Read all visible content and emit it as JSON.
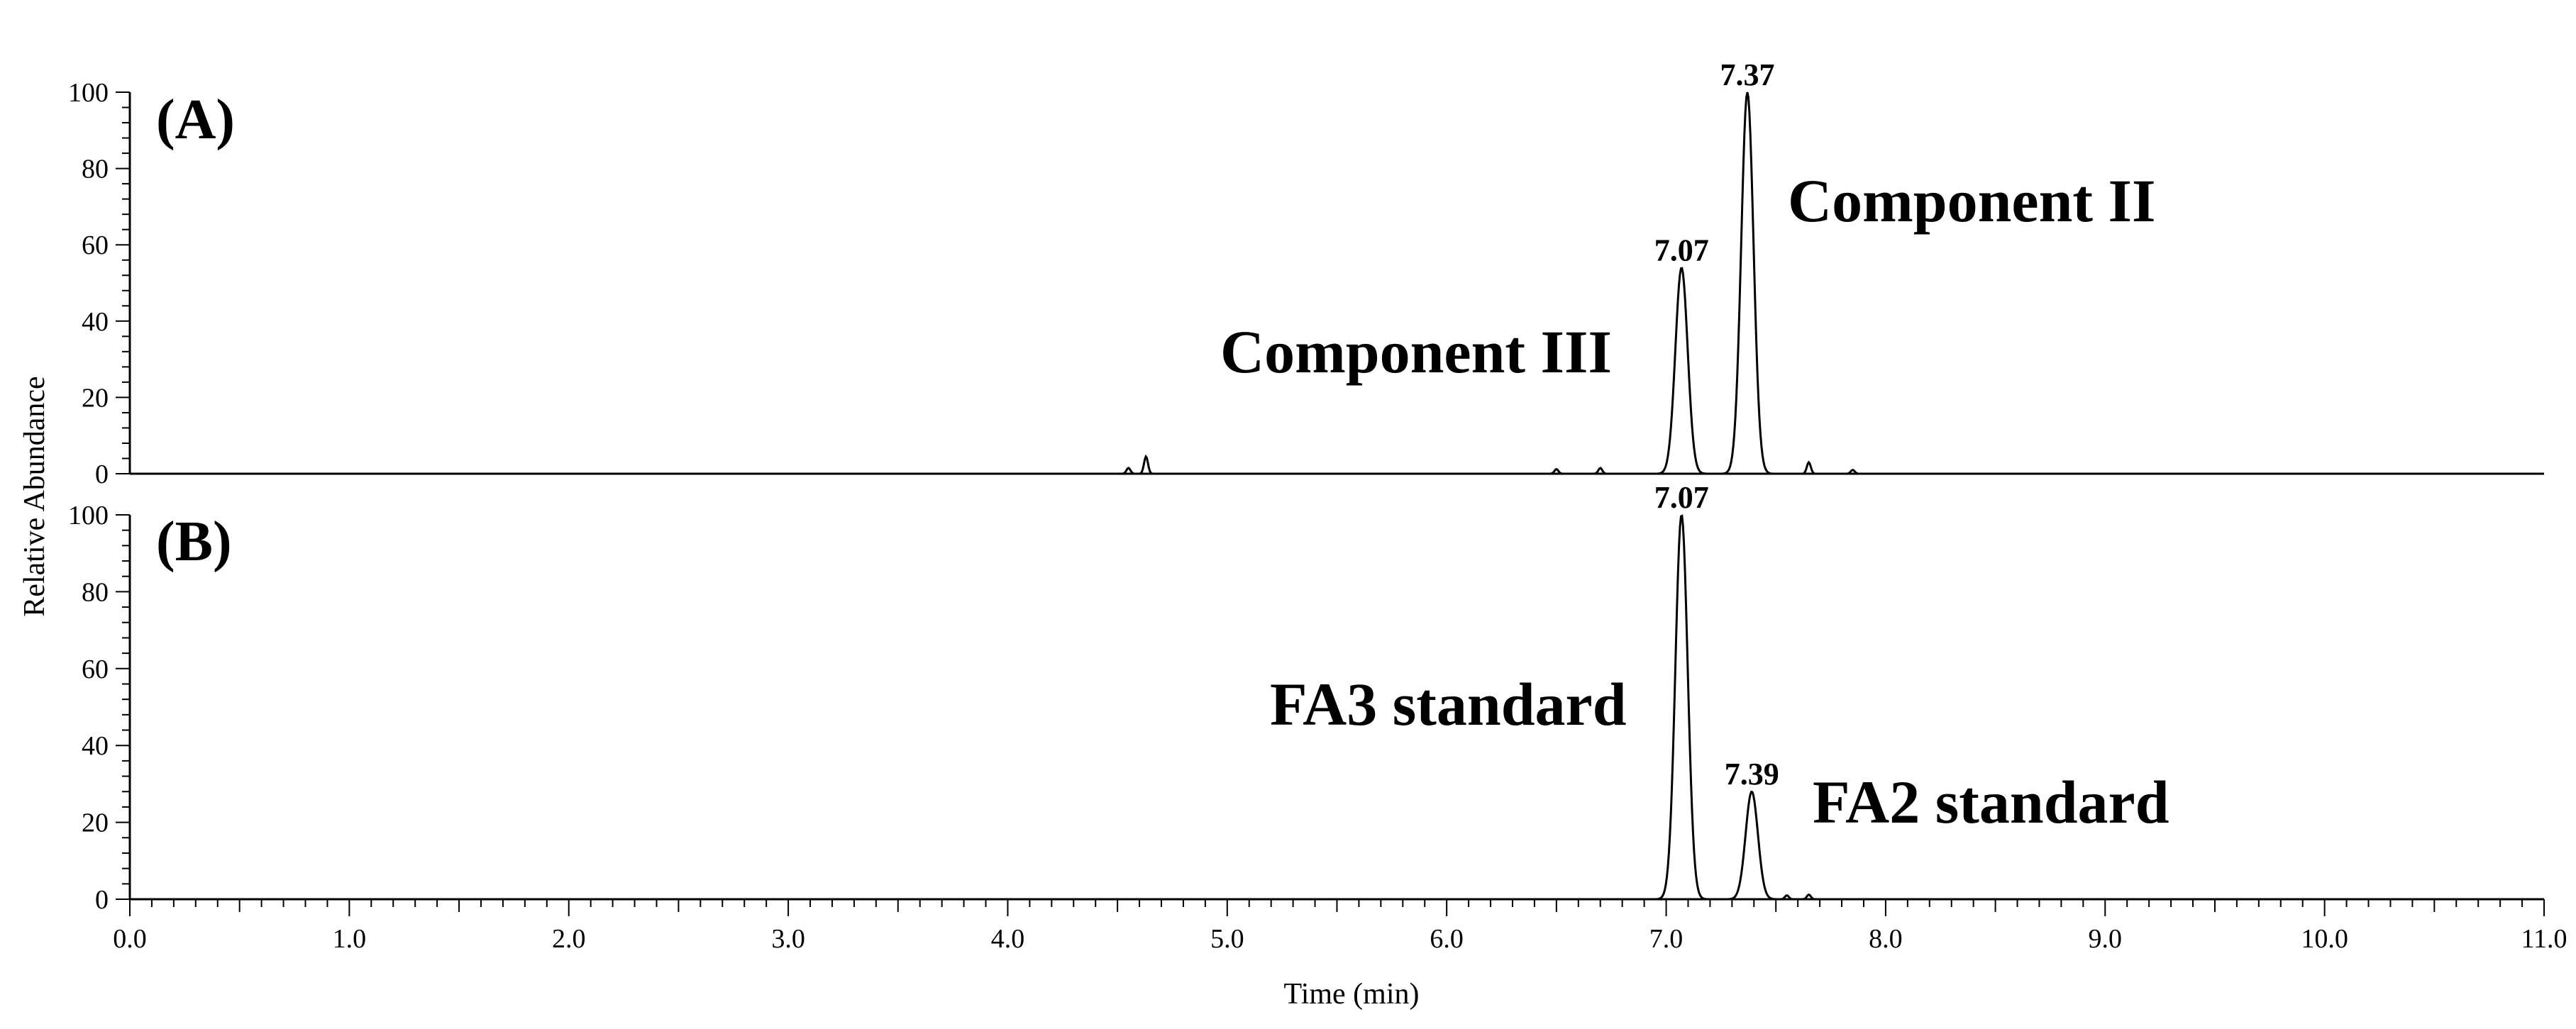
{
  "chart_data": [
    {
      "type": "line",
      "panel_label": "(A)",
      "ylim": [
        0,
        100
      ],
      "xlim": [
        0.0,
        11.0
      ],
      "baseline_noise": [
        {
          "x": 4.55,
          "y": 1.5
        },
        {
          "x": 4.63,
          "y": 4.5
        },
        {
          "x": 6.5,
          "y": 1.2
        },
        {
          "x": 6.7,
          "y": 1.5
        },
        {
          "x": 7.65,
          "y": 3.0
        },
        {
          "x": 7.85,
          "y": 1.0
        }
      ],
      "peaks": [
        {
          "x": 7.07,
          "y": 54,
          "label": "7.07"
        },
        {
          "x": 7.37,
          "y": 100,
          "label": "7.37"
        }
      ],
      "annotations": [
        {
          "text": "Component III"
        },
        {
          "text": "Component II"
        }
      ]
    },
    {
      "type": "line",
      "panel_label": "(B)",
      "ylim": [
        0,
        100
      ],
      "xlim": [
        0.0,
        11.0
      ],
      "baseline_noise": [
        {
          "x": 7.55,
          "y": 1.0
        },
        {
          "x": 7.65,
          "y": 1.2
        }
      ],
      "peaks": [
        {
          "x": 7.07,
          "y": 100,
          "label": "7.07"
        },
        {
          "x": 7.39,
          "y": 28,
          "label": "7.39"
        }
      ],
      "annotations": [
        {
          "text": "FA3 standard"
        },
        {
          "text": "FA2 standard"
        }
      ]
    }
  ],
  "axes": {
    "xlabel": "Time (min)",
    "ylabel": "Relative Abundance",
    "x_ticks": [
      "0.0",
      "1.0",
      "2.0",
      "3.0",
      "4.0",
      "5.0",
      "6.0",
      "7.0",
      "8.0",
      "9.0",
      "10.0",
      "11.0"
    ],
    "y_ticks": [
      "0",
      "20",
      "40",
      "60",
      "80",
      "100"
    ],
    "grid": false
  },
  "colors": {
    "trace": "#000000",
    "axis": "#000000",
    "background": "#ffffff"
  }
}
